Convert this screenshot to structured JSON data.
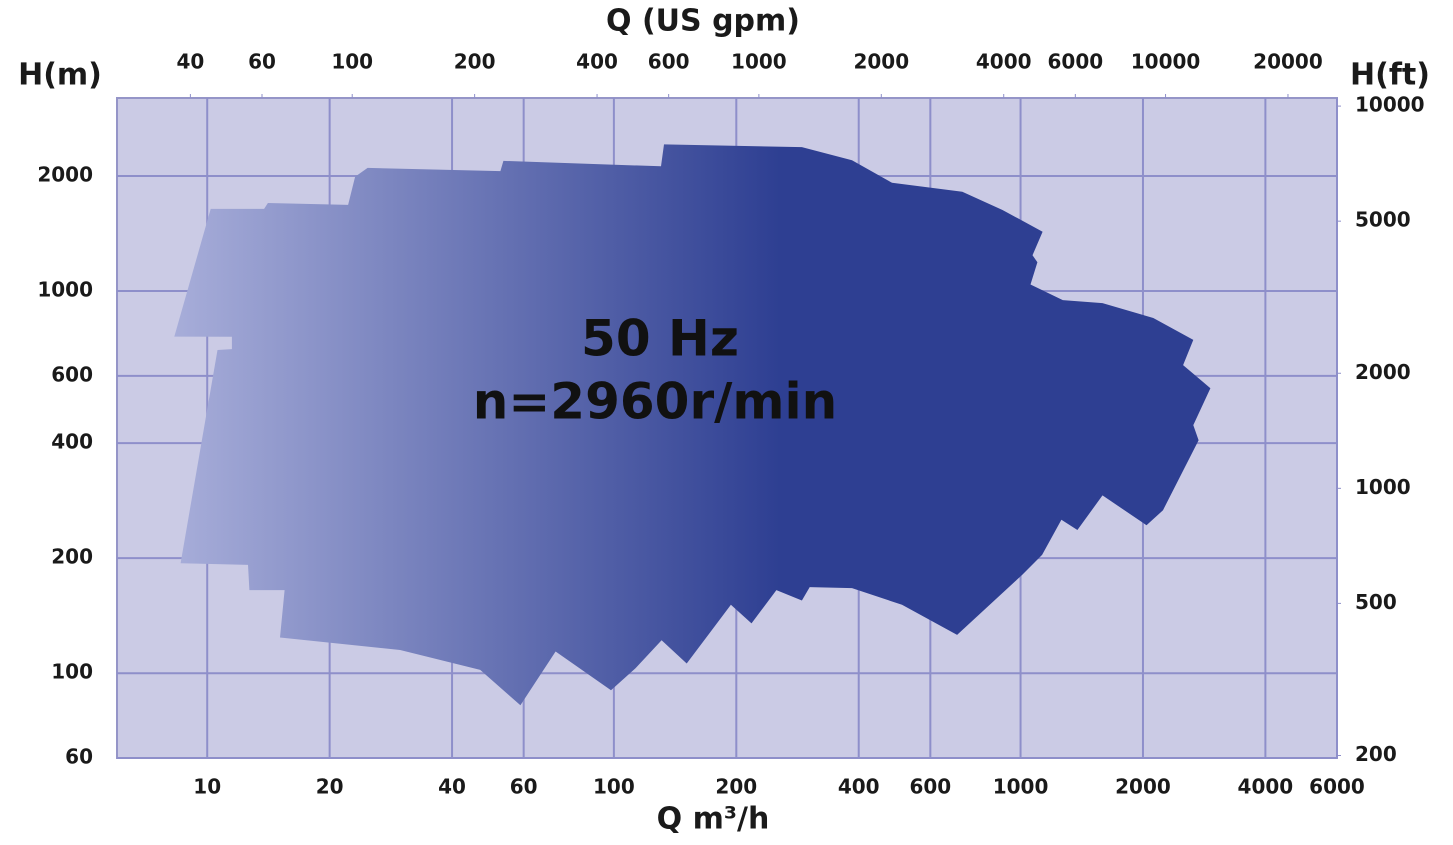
{
  "chart_data": {
    "type": "area-region",
    "x2label": "Q (US gpm)",
    "ylabel": "H(m)",
    "y2label": "H(ft)",
    "xlabel": "Q m³/h",
    "xscale": "log",
    "yscale": "log",
    "grid": true,
    "xlim": [
      6,
      6000
    ],
    "xticks": [
      10,
      20,
      40,
      60,
      100,
      200,
      400,
      600,
      1000,
      2000,
      4000,
      6000
    ],
    "ylim": [
      60,
      3200
    ],
    "yticks": [
      60,
      100,
      200,
      400,
      600,
      1000,
      2000
    ],
    "x2lim": [
      26.4,
      26400
    ],
    "x2ticks": [
      40,
      60,
      100,
      200,
      400,
      600,
      1000,
      2000,
      4000,
      6000,
      10000,
      20000
    ],
    "y2lim": [
      197,
      10500
    ],
    "y2ticks": [
      200,
      500,
      1000,
      2000,
      5000,
      10000
    ],
    "gradient": [
      "#a7add9",
      "#2e3f92"
    ],
    "region": {
      "x": [
        8.3,
        10.2,
        13.8,
        14.1,
        22.2,
        23.1,
        24.8,
        52.6,
        53.5,
        130.6,
        132.8,
        290,
        385,
        483,
        719,
        903,
        1133,
        1070,
        1100,
        1058,
        1270,
        1590,
        2120,
        2660,
        2510,
        2930,
        2660,
        2740,
        2240,
        2040,
        1590,
        1380,
        1260,
        1130,
        1010,
        698,
        511,
        385,
        303,
        290,
        251,
        218,
        194,
        151,
        131,
        113,
        98.4,
        71.9,
        58.9,
        46.9,
        29.8,
        15.1,
        15.5,
        12.7,
        12.6,
        8.6,
        10.6,
        11.5,
        11.5
      ],
      "y": [
        760,
        1640,
        1640,
        1700,
        1680,
        1990,
        2100,
        2060,
        2190,
        2120,
        2420,
        2380,
        2200,
        1920,
        1820,
        1630,
        1430,
        1240,
        1190,
        1040,
        947,
        930,
        850,
        745,
        640,
        557,
        446,
        407,
        267,
        244,
        292,
        237,
        252,
        204,
        181,
        126,
        151,
        167,
        168,
        155,
        165,
        135,
        151,
        106,
        122,
        103,
        90.2,
        114,
        82.4,
        102,
        115,
        124,
        165,
        165,
        192,
        194,
        701,
        705,
        759
      ]
    },
    "annotations": [
      "50 Hz",
      "n=2960r/min"
    ]
  }
}
